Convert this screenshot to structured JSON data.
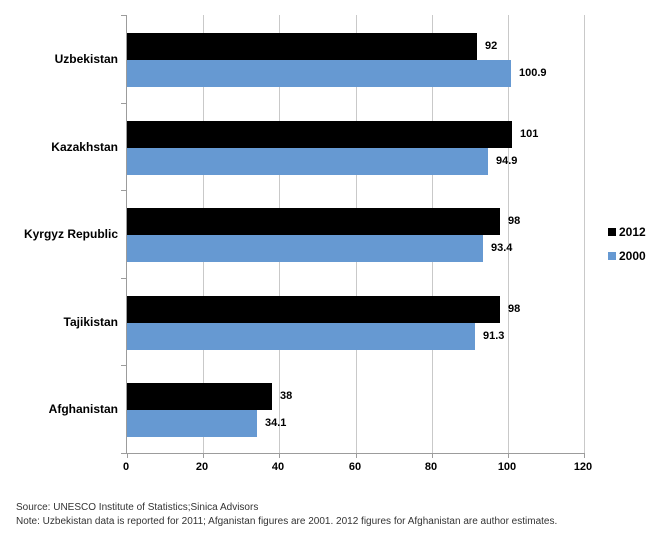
{
  "chart_data": {
    "type": "bar",
    "orientation": "horizontal",
    "title": "",
    "categories": [
      "Uzbekistan",
      "Kazakhstan",
      "Kyrgyz Republic",
      "Tajikistan",
      "Afghanistan"
    ],
    "series": [
      {
        "name": "2012",
        "color": "#000000",
        "values": [
          92,
          101,
          98,
          98,
          38
        ]
      },
      {
        "name": "2000",
        "color": "#6699D2",
        "values": [
          100.9,
          94.9,
          93.4,
          91.3,
          34.1
        ]
      }
    ],
    "value_labels": {
      "2012": [
        "92",
        "101",
        "98",
        "98",
        "38"
      ],
      "2000": [
        "100.9",
        "94.9",
        "93.4",
        "91.3",
        "34.1"
      ]
    },
    "xlabel": "",
    "ylabel": "",
    "xlim": [
      0,
      120
    ],
    "x_ticks": [
      0,
      20,
      40,
      60,
      80,
      100,
      120
    ],
    "x_tick_labels": [
      "0",
      "20",
      "40",
      "60",
      "80",
      "100",
      "120"
    ],
    "grid": true,
    "legend_position": "right"
  },
  "footer": {
    "source": "Source: UNESCO Institute of Statistics;Sinica Advisors",
    "note": "Note: Uzbekistan data is reported for 2011; Afganistan figures are 2001.  2012 figures for Afghanistan are author estimates."
  }
}
